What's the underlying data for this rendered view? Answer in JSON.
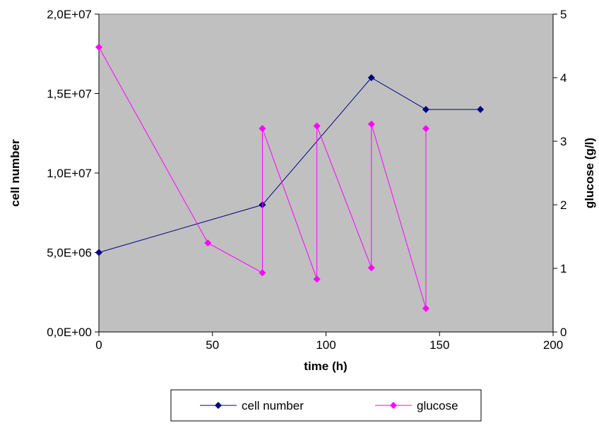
{
  "chart_data": {
    "type": "line",
    "title": "",
    "xlabel": "time (h)",
    "ylabel": "cell number",
    "y2label": "glucose (g/l)",
    "xlim": [
      0,
      200
    ],
    "ylim": [
      0,
      20000000
    ],
    "y2lim": [
      0,
      5
    ],
    "x_ticks": [
      0,
      50,
      100,
      150,
      200
    ],
    "x_tick_labels": [
      "0",
      "50",
      "100",
      "150",
      "200"
    ],
    "y_ticks": [
      0,
      5000000,
      10000000,
      15000000,
      20000000
    ],
    "y_tick_labels": [
      "0,0E+00",
      "5,0E+06",
      "1,0E+07",
      "1,5E+07",
      "2,0E+07"
    ],
    "y2_ticks": [
      0,
      1,
      2,
      3,
      4,
      5
    ],
    "y2_tick_labels": [
      "0",
      "1",
      "2",
      "3",
      "4",
      "5"
    ],
    "grid": false,
    "plot_background": "#c0c0c0",
    "legend_position": "bottom",
    "series": [
      {
        "name": "cell number",
        "axis": "left",
        "color": "#000080",
        "marker": "diamond",
        "x": [
          0,
          72,
          120,
          144,
          168
        ],
        "y": [
          5000000,
          8000000,
          16000000,
          14000000,
          14000000
        ]
      },
      {
        "name": "glucose",
        "axis": "right",
        "color": "#ff00ff",
        "marker": "diamond",
        "x": [
          0,
          48,
          72,
          72,
          96,
          96,
          120,
          120,
          144,
          144
        ],
        "y": [
          4.48,
          1.4,
          0.93,
          3.2,
          0.83,
          3.24,
          1.01,
          3.27,
          0.37,
          3.2
        ]
      }
    ]
  }
}
